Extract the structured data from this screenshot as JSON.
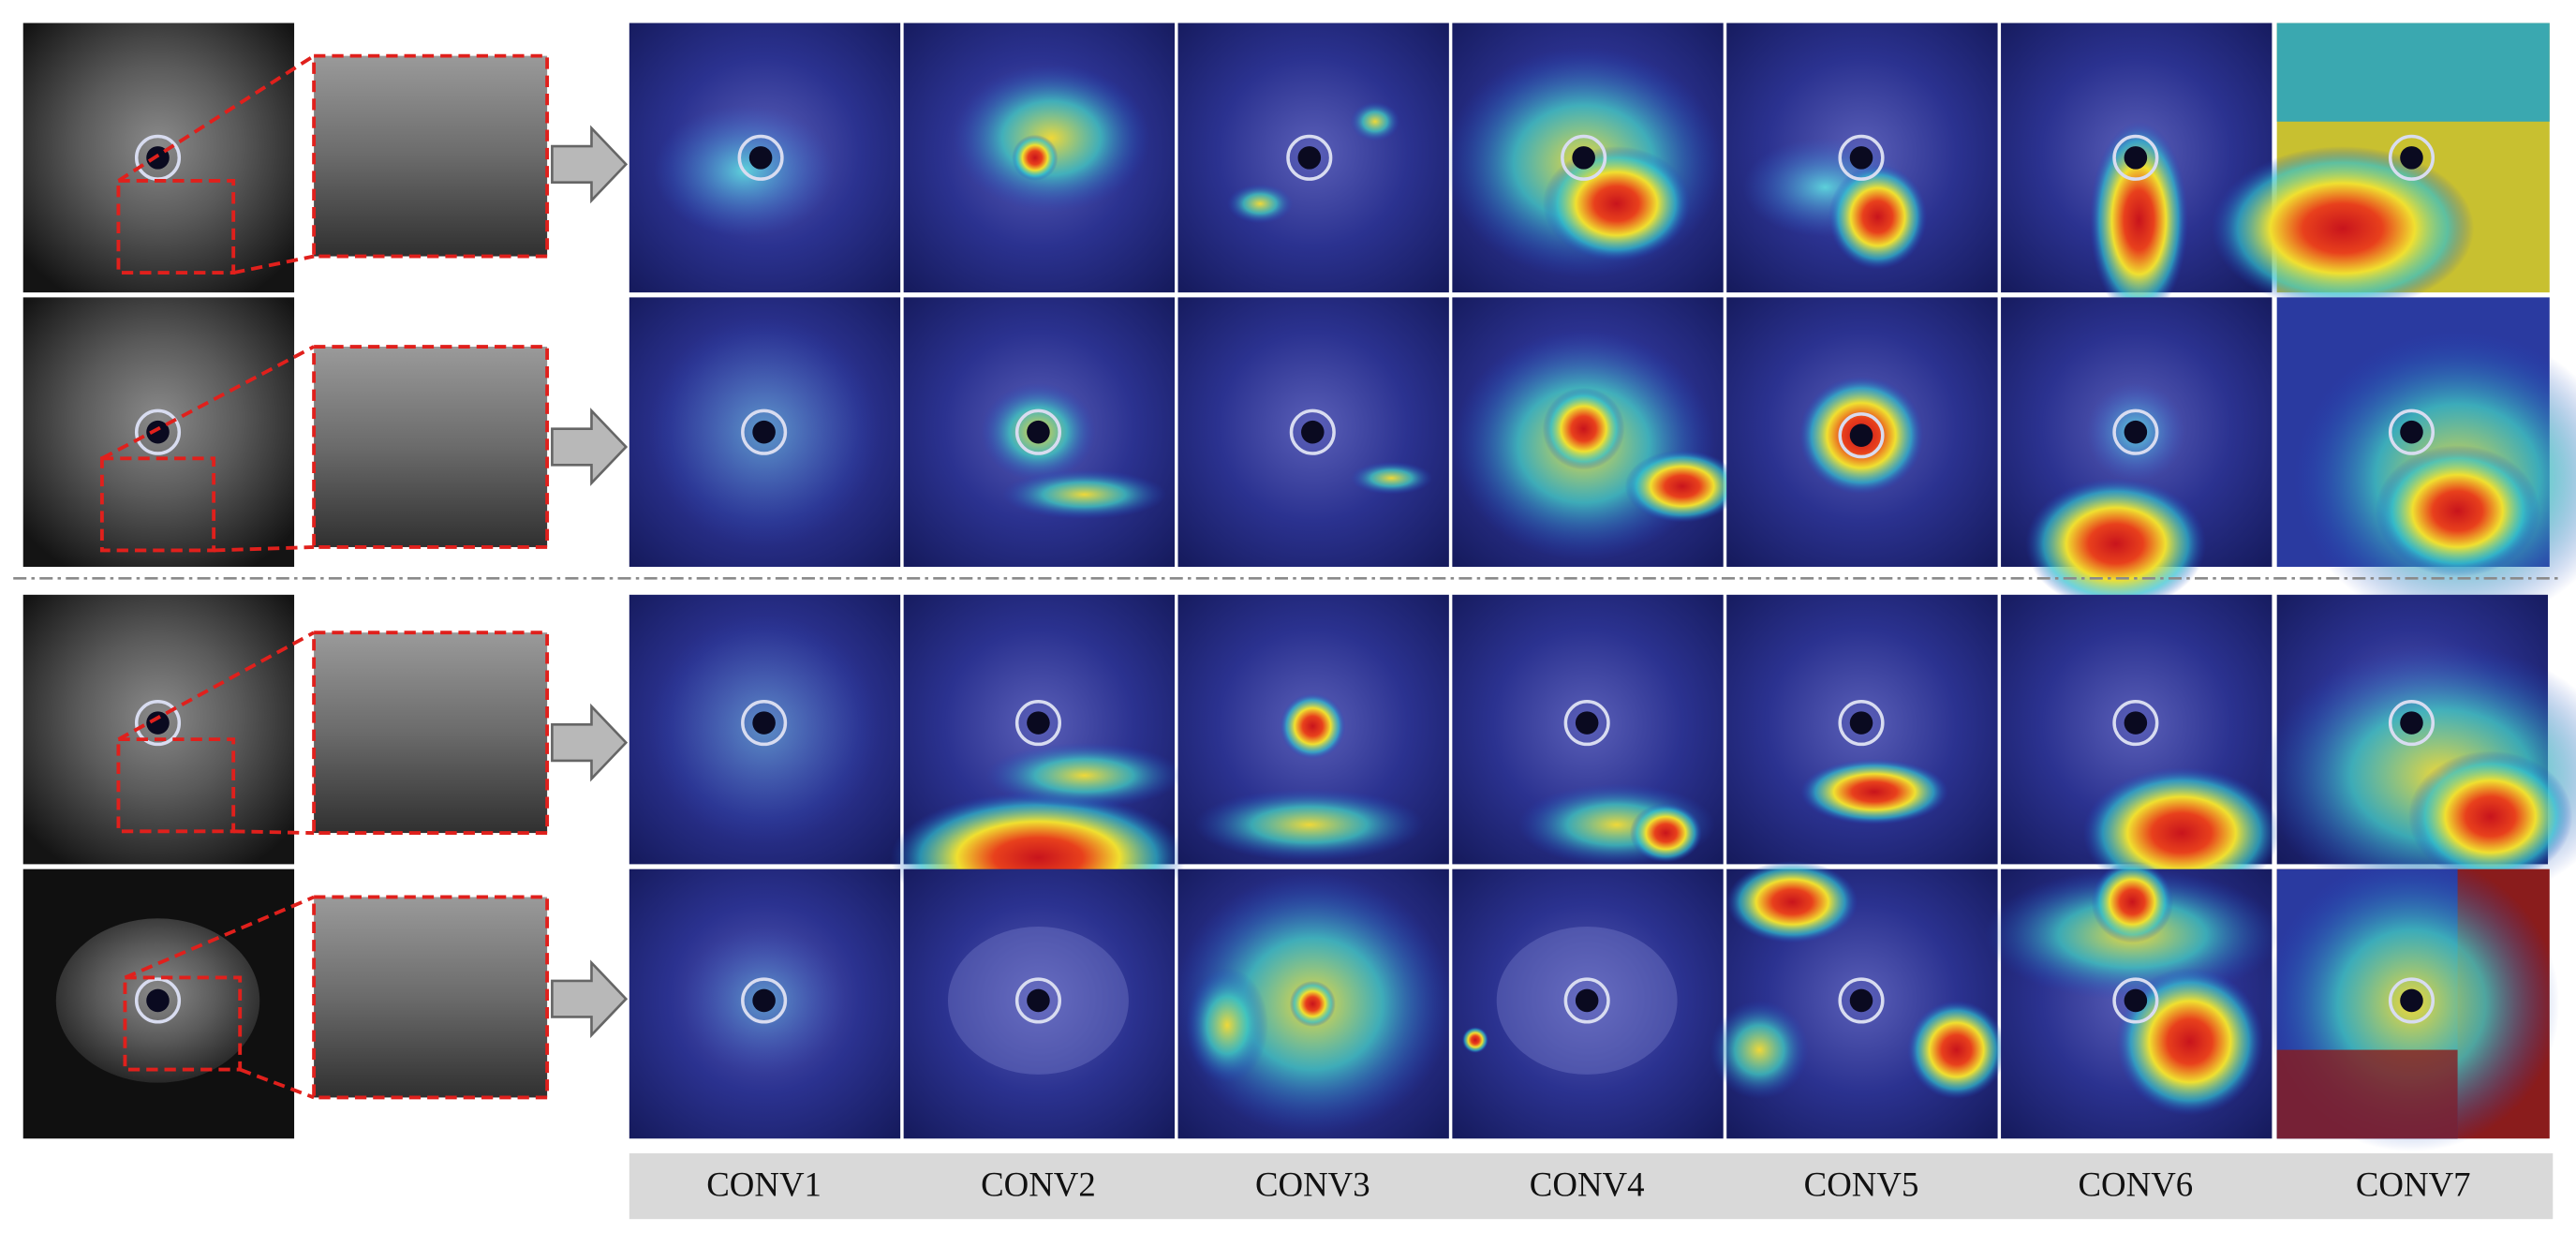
{
  "column_labels": [
    "CONV1",
    "CONV2",
    "CONV3",
    "CONV4",
    "CONV5",
    "CONV6",
    "CONV7"
  ]
}
